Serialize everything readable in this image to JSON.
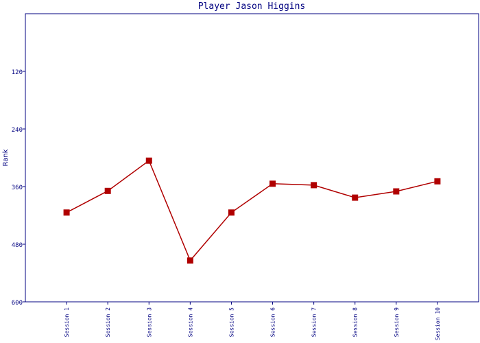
{
  "chart_data": {
    "type": "line",
    "title": "Player Jason Higgins",
    "y_label": "Rank",
    "categories": [
      "Session 1",
      "Session 2",
      "Session 3",
      "Session 4",
      "Session 5",
      "Session 6",
      "Session 7",
      "Session 8",
      "Session 9",
      "Session 10"
    ],
    "series": [
      {
        "name": "Rank",
        "color": "#b00000",
        "values": [
          414,
          369,
          306,
          514,
          414,
          354,
          357,
          383,
          370,
          349
        ]
      }
    ],
    "ylim": [
      0,
      600
    ],
    "yticks": [
      120,
      240,
      360,
      480,
      600
    ],
    "y_inverted": true,
    "grid": false
  }
}
